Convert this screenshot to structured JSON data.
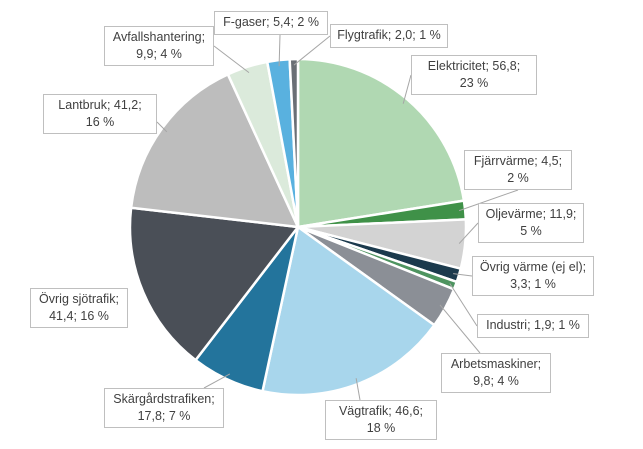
{
  "chart_data": {
    "type": "pie",
    "title": "",
    "start_angle_deg": 0,
    "direction": "clockwise",
    "slices": [
      {
        "name": "Elektricitet",
        "value": 56.8,
        "percent": "23 %",
        "label_lines": [
          "Elektricitet; 56,8;",
          "23 %"
        ],
        "color": "#b0d8b2"
      },
      {
        "name": "Fjärrvärme",
        "value": 4.5,
        "percent": "2 %",
        "label_lines": [
          "Fjärrvärme; 4,5;",
          "2 %"
        ],
        "color": "#3f9148"
      },
      {
        "name": "Oljevärme",
        "value": 11.9,
        "percent": "5 %",
        "label_lines": [
          "Oljevärme; 11,9;",
          "5 %"
        ],
        "color": "#d3d3d3"
      },
      {
        "name": "Övrig värme (ej el)",
        "value": 3.3,
        "percent": "1 %",
        "label_lines": [
          "Övrig värme (ej el);",
          "3,3; 1 %"
        ],
        "color": "#1b3a4d"
      },
      {
        "name": "Industri",
        "value": 1.9,
        "percent": "1 %",
        "label_lines": [
          "Industri; 1,9; 1 %"
        ],
        "color": "#4e9460"
      },
      {
        "name": "Arbetsmaskiner",
        "value": 9.8,
        "percent": "4 %",
        "label_lines": [
          "Arbetsmaskiner;",
          "9,8; 4 %"
        ],
        "color": "#8b8f96"
      },
      {
        "name": "Vägtrafik",
        "value": 46.6,
        "percent": "18 %",
        "label_lines": [
          "Vägtrafik; 46,6;",
          "18 %"
        ],
        "color": "#a8d6ec"
      },
      {
        "name": "Skärgårdstrafiken",
        "value": 17.8,
        "percent": "7 %",
        "label_lines": [
          "Skärgårdstrafiken;",
          "17,8; 7 %"
        ],
        "color": "#23749c"
      },
      {
        "name": "Övrig sjötrafik",
        "value": 41.4,
        "percent": "16 %",
        "label_lines": [
          "Övrig sjötrafik;",
          "41,4; 16 %"
        ],
        "color": "#4a4f57"
      },
      {
        "name": "Lantbruk",
        "value": 41.2,
        "percent": "16 %",
        "label_lines": [
          "Lantbruk; 41,2;",
          "16 %"
        ],
        "color": "#bdbdbd"
      },
      {
        "name": "Avfallshantering",
        "value": 9.9,
        "percent": "4 %",
        "label_lines": [
          "Avfallshantering;",
          "9,9; 4 %"
        ],
        "color": "#dbeadb"
      },
      {
        "name": "F-gaser",
        "value": 5.4,
        "percent": "2 %",
        "label_lines": [
          "F-gaser; 5,4; 2 %"
        ],
        "color": "#59b1df"
      },
      {
        "name": "Flygtrafik",
        "value": 2.0,
        "percent": "1 %",
        "label_lines": [
          "Flygtrafik; 2,0; 1 %"
        ],
        "color": "#6a6f75"
      }
    ]
  }
}
